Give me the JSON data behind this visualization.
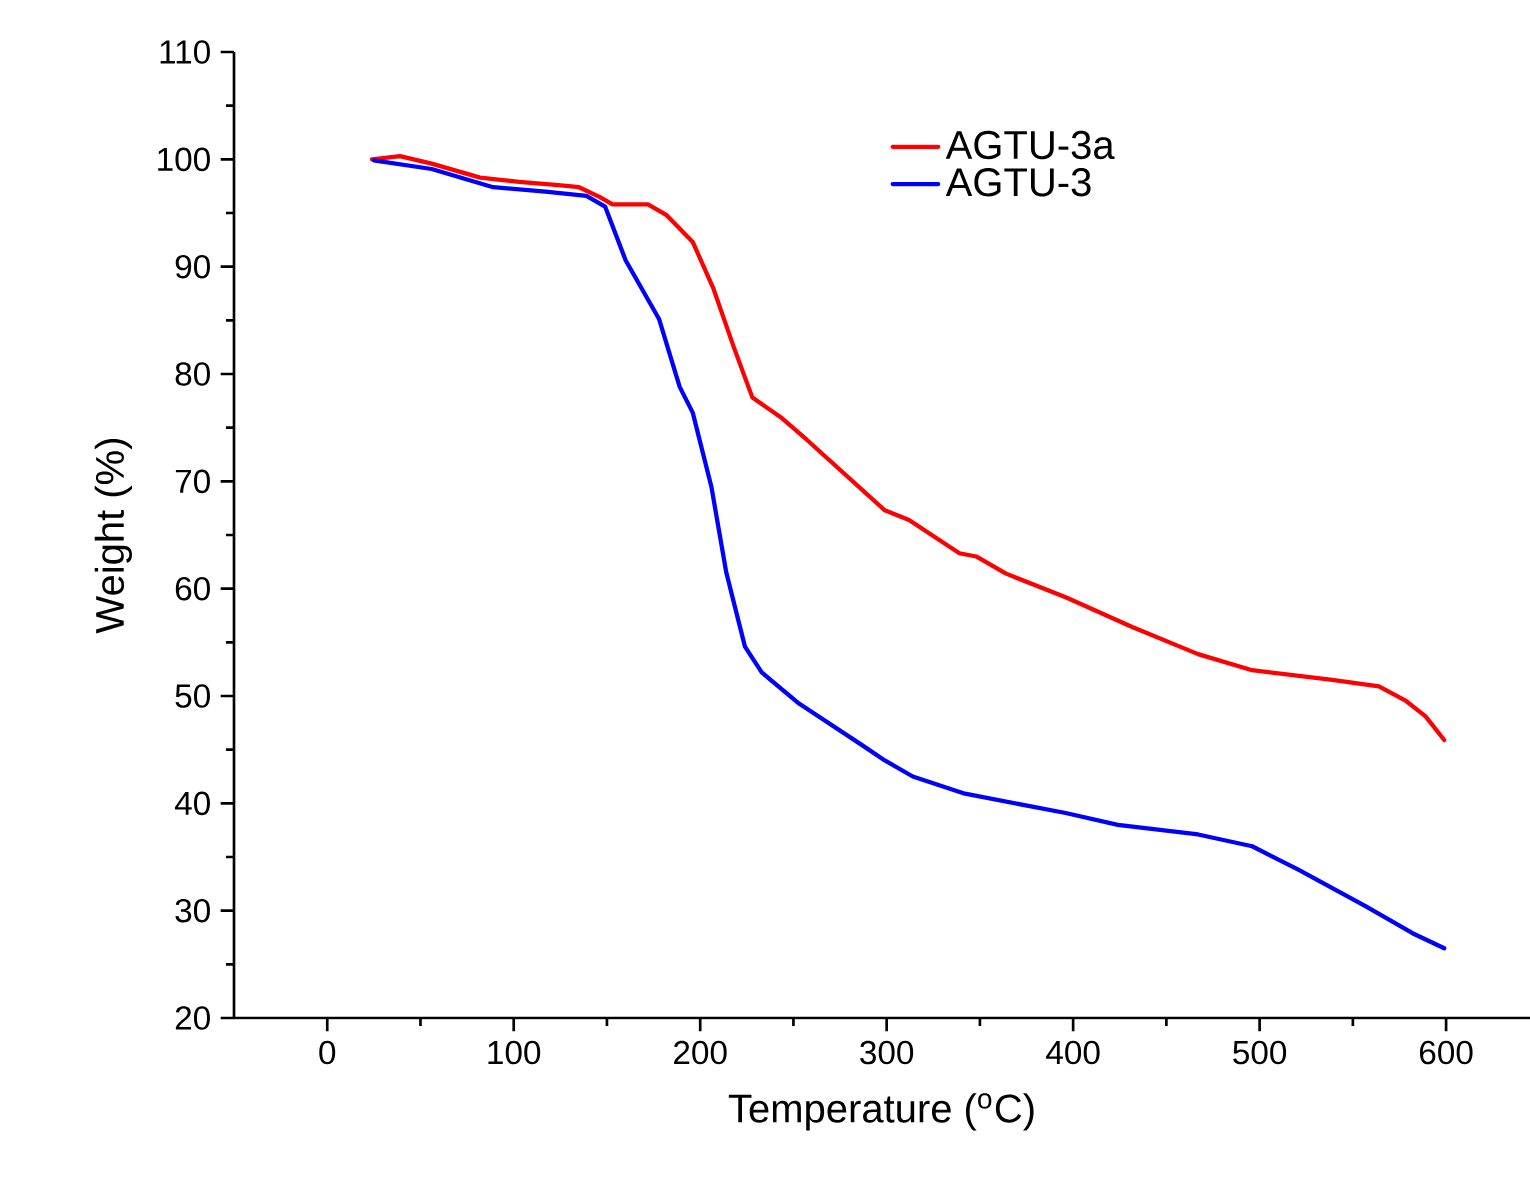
{
  "chart_data": {
    "type": "line",
    "xlabel": "Temperature ($^{o}$C)",
    "ylabel": "Weight (%)",
    "xlim": [
      -50,
      645
    ],
    "ylim": [
      20,
      110
    ],
    "xticks": [
      0,
      100,
      200,
      300,
      400,
      500,
      600
    ],
    "yticks": [
      20,
      30,
      40,
      50,
      60,
      70,
      80,
      90,
      100,
      110
    ],
    "legend": "top right",
    "grid": false,
    "marker": "none",
    "line_style": "solid",
    "series": [
      {
        "name": "AGTU-3a",
        "color": "#ff0000",
        "x": [
          24,
          39,
          56,
          82,
          103,
          124,
          135,
          146,
          153,
          172,
          182,
          196,
          207,
          218,
          228,
          243,
          257,
          299,
          312,
          339,
          348,
          364,
          396,
          432,
          467,
          496,
          539,
          564,
          578,
          589,
          599
        ],
        "values": [
          100.0,
          100.3,
          99.6,
          98.3,
          97.9,
          97.6,
          97.4,
          96.5,
          95.8,
          95.8,
          94.8,
          92.3,
          88.0,
          82.5,
          77.8,
          76.0,
          73.9,
          67.3,
          66.4,
          63.3,
          63.0,
          61.4,
          59.2,
          56.4,
          53.9,
          52.4,
          51.5,
          50.9,
          49.6,
          48.1,
          45.9
        ]
      },
      {
        "name": "AGTU-3",
        "color": "#0000ff",
        "x": [
          25,
          56,
          89,
          117,
          139,
          149,
          160,
          178,
          189,
          196,
          206,
          214,
          224,
          233,
          253,
          287,
          299,
          314,
          342,
          396,
          424,
          467,
          496,
          521,
          557,
          582,
          599
        ],
        "values": [
          99.9,
          99.1,
          97.4,
          97.0,
          96.6,
          95.6,
          90.6,
          85.1,
          78.8,
          76.4,
          69.5,
          61.5,
          54.6,
          52.2,
          49.3,
          45.4,
          44.0,
          42.5,
          40.9,
          39.1,
          38.0,
          37.1,
          36.0,
          33.8,
          30.4,
          27.9,
          26.5
        ]
      }
    ]
  }
}
